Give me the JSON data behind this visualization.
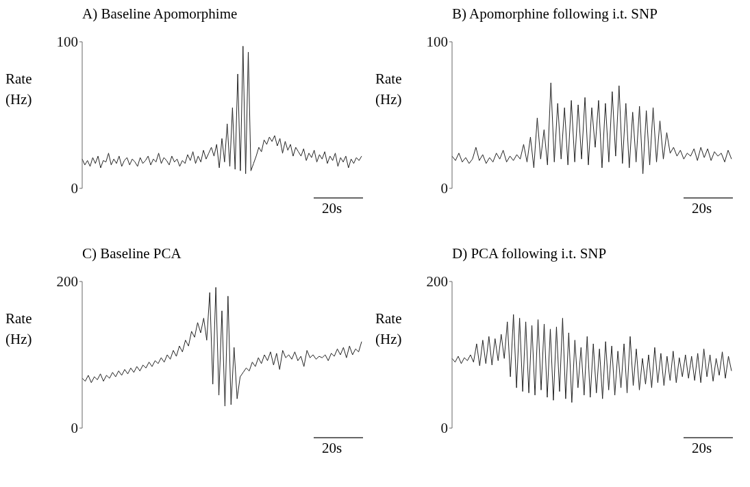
{
  "chart_data": [
    {
      "type": "line",
      "title": "A) Baseline Apomorphime",
      "ylabel": "Rate\n(Hz)",
      "ylim": [
        0,
        100
      ],
      "yticks": [
        0,
        100
      ],
      "tick_labels": "y",
      "grid": false,
      "marker": "none",
      "line_style": "solid",
      "annotations": [
        "20s"
      ],
      "categories": [
        null,
        null,
        null,
        null,
        null,
        null,
        null,
        null,
        null,
        null,
        null,
        null,
        null,
        null,
        null,
        null,
        null,
        null,
        null,
        null,
        null,
        null,
        null,
        null,
        null,
        null,
        null,
        null,
        null,
        null,
        null,
        null,
        null,
        null,
        null,
        null,
        null,
        null,
        null,
        null,
        null,
        null,
        null,
        null,
        null,
        null,
        null,
        null,
        null,
        null,
        null,
        null,
        null,
        null,
        null,
        null,
        null,
        null,
        null,
        null,
        null,
        null,
        null,
        null,
        null,
        null,
        null,
        null,
        null,
        null,
        null,
        null,
        null,
        null,
        null,
        null,
        null,
        null,
        null,
        null,
        null,
        null,
        null,
        null,
        null,
        null,
        null,
        null,
        null,
        null,
        null,
        null,
        null,
        null,
        null,
        null,
        null,
        null,
        null,
        null,
        null,
        null,
        null,
        null,
        null,
        null,
        null
      ],
      "series": [
        {
          "color": "#222222",
          "values": [
            20,
            16,
            19,
            15,
            21,
            17,
            22,
            14,
            19,
            18,
            24,
            16,
            20,
            17,
            22,
            15,
            19,
            21,
            16,
            20,
            18,
            15,
            21,
            17,
            19,
            22,
            16,
            20,
            18,
            24,
            17,
            21,
            19,
            16,
            22,
            18,
            20,
            15,
            19,
            17,
            23,
            19,
            25,
            17,
            22,
            18,
            26,
            20,
            24,
            28,
            22,
            30,
            14,
            34,
            18,
            44,
            15,
            55,
            13,
            78,
            12,
            97,
            10,
            93,
            12,
            17,
            22,
            28,
            25,
            33,
            30,
            35,
            32,
            36,
            29,
            34,
            24,
            32,
            26,
            30,
            22,
            28,
            25,
            22,
            27,
            19,
            24,
            21,
            26,
            18,
            23,
            20,
            25,
            17,
            22,
            19,
            24,
            15,
            21,
            18,
            22,
            14,
            20,
            17,
            21,
            19,
            22
          ]
        }
      ]
    },
    {
      "type": "line",
      "title": "B) Apomorphine following i.t. SNP",
      "ylabel": "Rate\n(Hz)",
      "ylim": [
        0,
        100
      ],
      "yticks": [
        0,
        100
      ],
      "tick_labels": "y",
      "grid": false,
      "marker": "none",
      "line_style": "solid",
      "annotations": [
        "20s"
      ],
      "categories": [
        null,
        null,
        null,
        null,
        null,
        null,
        null,
        null,
        null,
        null,
        null,
        null,
        null,
        null,
        null,
        null,
        null,
        null,
        null,
        null,
        null,
        null,
        null,
        null,
        null,
        null,
        null,
        null,
        null,
        null,
        null,
        null,
        null,
        null,
        null,
        null,
        null,
        null,
        null,
        null,
        null,
        null,
        null,
        null,
        null,
        null,
        null,
        null,
        null,
        null,
        null,
        null,
        null,
        null,
        null,
        null,
        null,
        null,
        null,
        null,
        null,
        null,
        null,
        null,
        null,
        null,
        null,
        null,
        null,
        null,
        null,
        null,
        null,
        null,
        null,
        null,
        null,
        null,
        null,
        null,
        null,
        null,
        null
      ],
      "series": [
        {
          "color": "#222222",
          "values": [
            22,
            19,
            24,
            18,
            21,
            17,
            20,
            28,
            19,
            23,
            17,
            21,
            18,
            24,
            20,
            26,
            18,
            22,
            19,
            23,
            20,
            30,
            18,
            35,
            14,
            48,
            20,
            40,
            16,
            72,
            18,
            58,
            20,
            55,
            16,
            60,
            18,
            57,
            20,
            62,
            16,
            55,
            28,
            60,
            14,
            58,
            18,
            66,
            22,
            70,
            17,
            58,
            14,
            52,
            18,
            56,
            10,
            53,
            16,
            55,
            18,
            46,
            20,
            38,
            24,
            28,
            22,
            26,
            20,
            24,
            22,
            27,
            19,
            28,
            21,
            27,
            19,
            25,
            22,
            24,
            18,
            26,
            20
          ]
        }
      ]
    },
    {
      "type": "line",
      "title": "C) Baseline PCA",
      "ylabel": "Rate\n(Hz)",
      "ylim": [
        0,
        200
      ],
      "yticks": [
        0,
        200
      ],
      "tick_labels": "y",
      "grid": false,
      "marker": "none",
      "line_style": "solid",
      "annotations": [
        "20s"
      ],
      "categories": [
        null,
        null,
        null,
        null,
        null,
        null,
        null,
        null,
        null,
        null,
        null,
        null,
        null,
        null,
        null,
        null,
        null,
        null,
        null,
        null,
        null,
        null,
        null,
        null,
        null,
        null,
        null,
        null,
        null,
        null,
        null,
        null,
        null,
        null,
        null,
        null,
        null,
        null,
        null,
        null,
        null,
        null,
        null,
        null,
        null,
        null,
        null,
        null,
        null,
        null,
        null,
        null,
        null,
        null,
        null,
        null,
        null,
        null,
        null,
        null,
        null,
        null,
        null,
        null,
        null,
        null,
        null,
        null,
        null,
        null,
        null,
        null,
        null,
        null,
        null,
        null,
        null,
        null,
        null,
        null,
        null,
        null,
        null,
        null,
        null,
        null,
        null,
        null,
        null,
        null,
        null,
        null,
        null
      ],
      "series": [
        {
          "color": "#222222",
          "values": [
            68,
            64,
            72,
            62,
            70,
            66,
            74,
            64,
            72,
            68,
            76,
            70,
            78,
            72,
            80,
            74,
            82,
            76,
            84,
            78,
            86,
            82,
            90,
            84,
            92,
            88,
            96,
            90,
            100,
            94,
            106,
            98,
            112,
            104,
            120,
            112,
            132,
            124,
            144,
            130,
            150,
            120,
            185,
            60,
            192,
            45,
            160,
            30,
            180,
            32,
            110,
            40,
            70,
            76,
            82,
            78,
            90,
            84,
            96,
            88,
            100,
            92,
            104,
            86,
            102,
            80,
            106,
            96,
            100,
            94,
            104,
            92,
            98,
            84,
            106,
            96,
            100,
            94,
            98,
            96,
            100,
            92,
            102,
            98,
            108,
            100,
            110,
            96,
            112,
            100,
            108,
            104,
            118
          ]
        }
      ]
    },
    {
      "type": "line",
      "title": "D) PCA following i.t. SNP",
      "ylabel": "Rate\n(Hz)",
      "ylim": [
        0,
        200
      ],
      "yticks": [
        0,
        200
      ],
      "tick_labels": "y",
      "grid": false,
      "marker": "none",
      "line_style": "solid",
      "annotations": [
        "20s"
      ],
      "categories": [
        null,
        null,
        null,
        null,
        null,
        null,
        null,
        null,
        null,
        null,
        null,
        null,
        null,
        null,
        null,
        null,
        null,
        null,
        null,
        null,
        null,
        null,
        null,
        null,
        null,
        null,
        null,
        null,
        null,
        null,
        null,
        null,
        null,
        null,
        null,
        null,
        null,
        null,
        null,
        null,
        null,
        null,
        null,
        null,
        null,
        null,
        null,
        null,
        null,
        null,
        null,
        null,
        null,
        null,
        null,
        null,
        null,
        null,
        null,
        null,
        null,
        null,
        null,
        null,
        null,
        null,
        null,
        null,
        null,
        null,
        null,
        null,
        null,
        null,
        null,
        null,
        null,
        null,
        null,
        null,
        null,
        null,
        null,
        null,
        null,
        null,
        null,
        null,
        null,
        null,
        null,
        null
      ],
      "series": [
        {
          "color": "#222222",
          "values": [
            95,
            90,
            98,
            88,
            96,
            92,
            100,
            90,
            115,
            85,
            120,
            88,
            125,
            86,
            122,
            92,
            128,
            95,
            145,
            70,
            155,
            55,
            150,
            50,
            145,
            48,
            140,
            45,
            148,
            52,
            142,
            42,
            135,
            38,
            138,
            50,
            150,
            40,
            130,
            35,
            120,
            55,
            110,
            45,
            125,
            42,
            115,
            48,
            108,
            40,
            118,
            52,
            112,
            45,
            105,
            55,
            115,
            48,
            125,
            58,
            108,
            52,
            95,
            60,
            100,
            55,
            110,
            62,
            102,
            58,
            98,
            65,
            105,
            62,
            96,
            70,
            100,
            68,
            98,
            65,
            102,
            62,
            108,
            70,
            100,
            64,
            95,
            72,
            104,
            68,
            98,
            78
          ]
        }
      ]
    }
  ]
}
